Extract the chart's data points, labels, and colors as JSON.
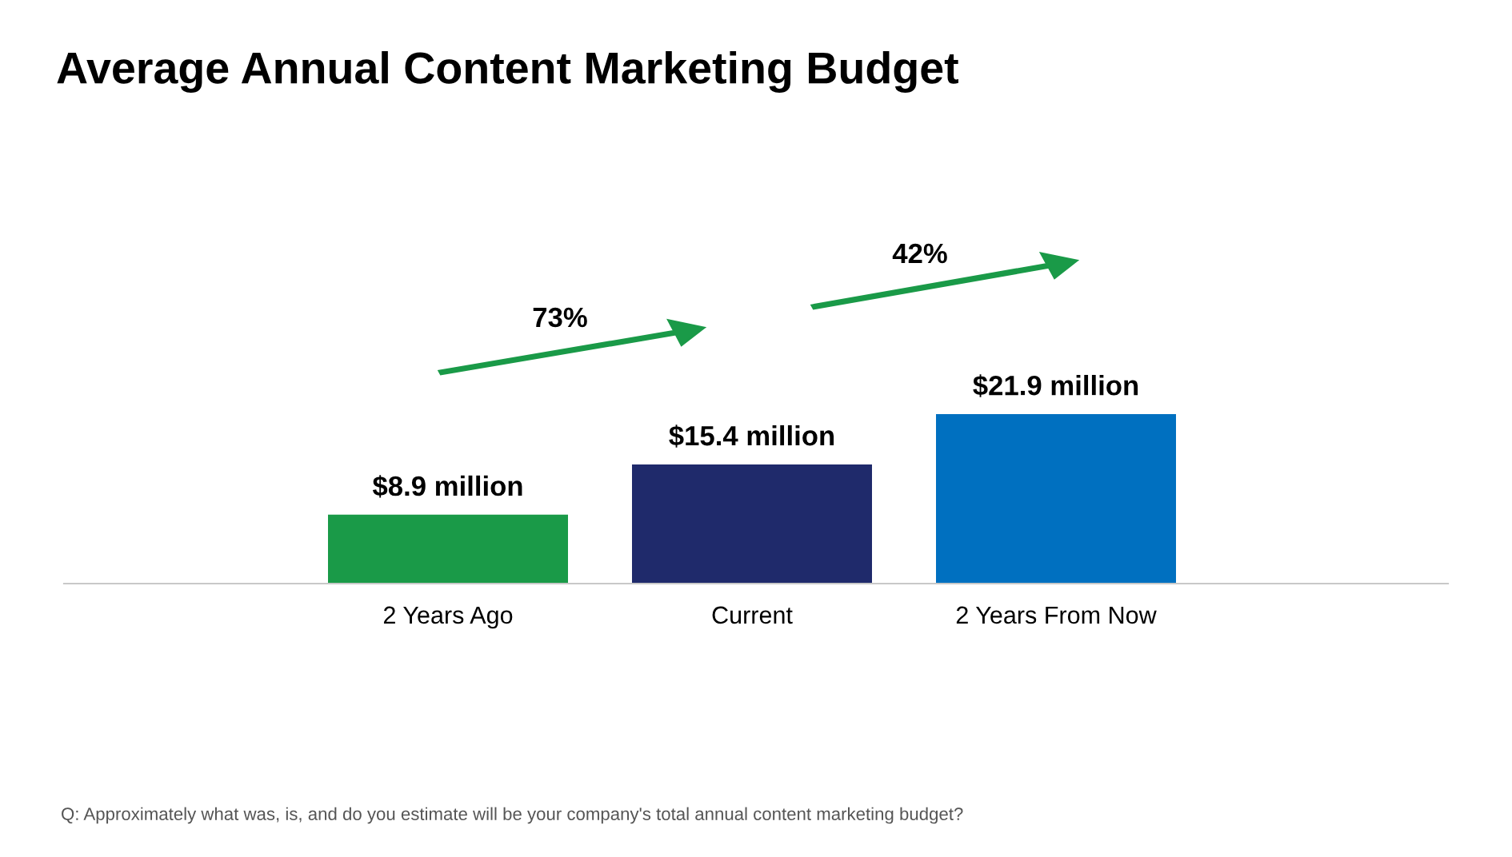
{
  "chart_data": {
    "type": "bar",
    "title": "Average Annual Content Marketing Budget",
    "categories": [
      "2 Years Ago",
      "Current",
      "2 Years From Now"
    ],
    "values": [
      8.9,
      15.4,
      21.9
    ],
    "colors": [
      "#1a9a48",
      "#1f2a6b",
      "#0070c0"
    ],
    "value_labels": [
      "$8.9 million",
      "$15.4 million",
      "$21.9 million"
    ],
    "annotations": [
      "73%",
      "42%",
      "Q: Approximately what was, is, and do you estimate will be your company's total annual content marketing budget?"
    ],
    "grid": false,
    "legend": false
  }
}
